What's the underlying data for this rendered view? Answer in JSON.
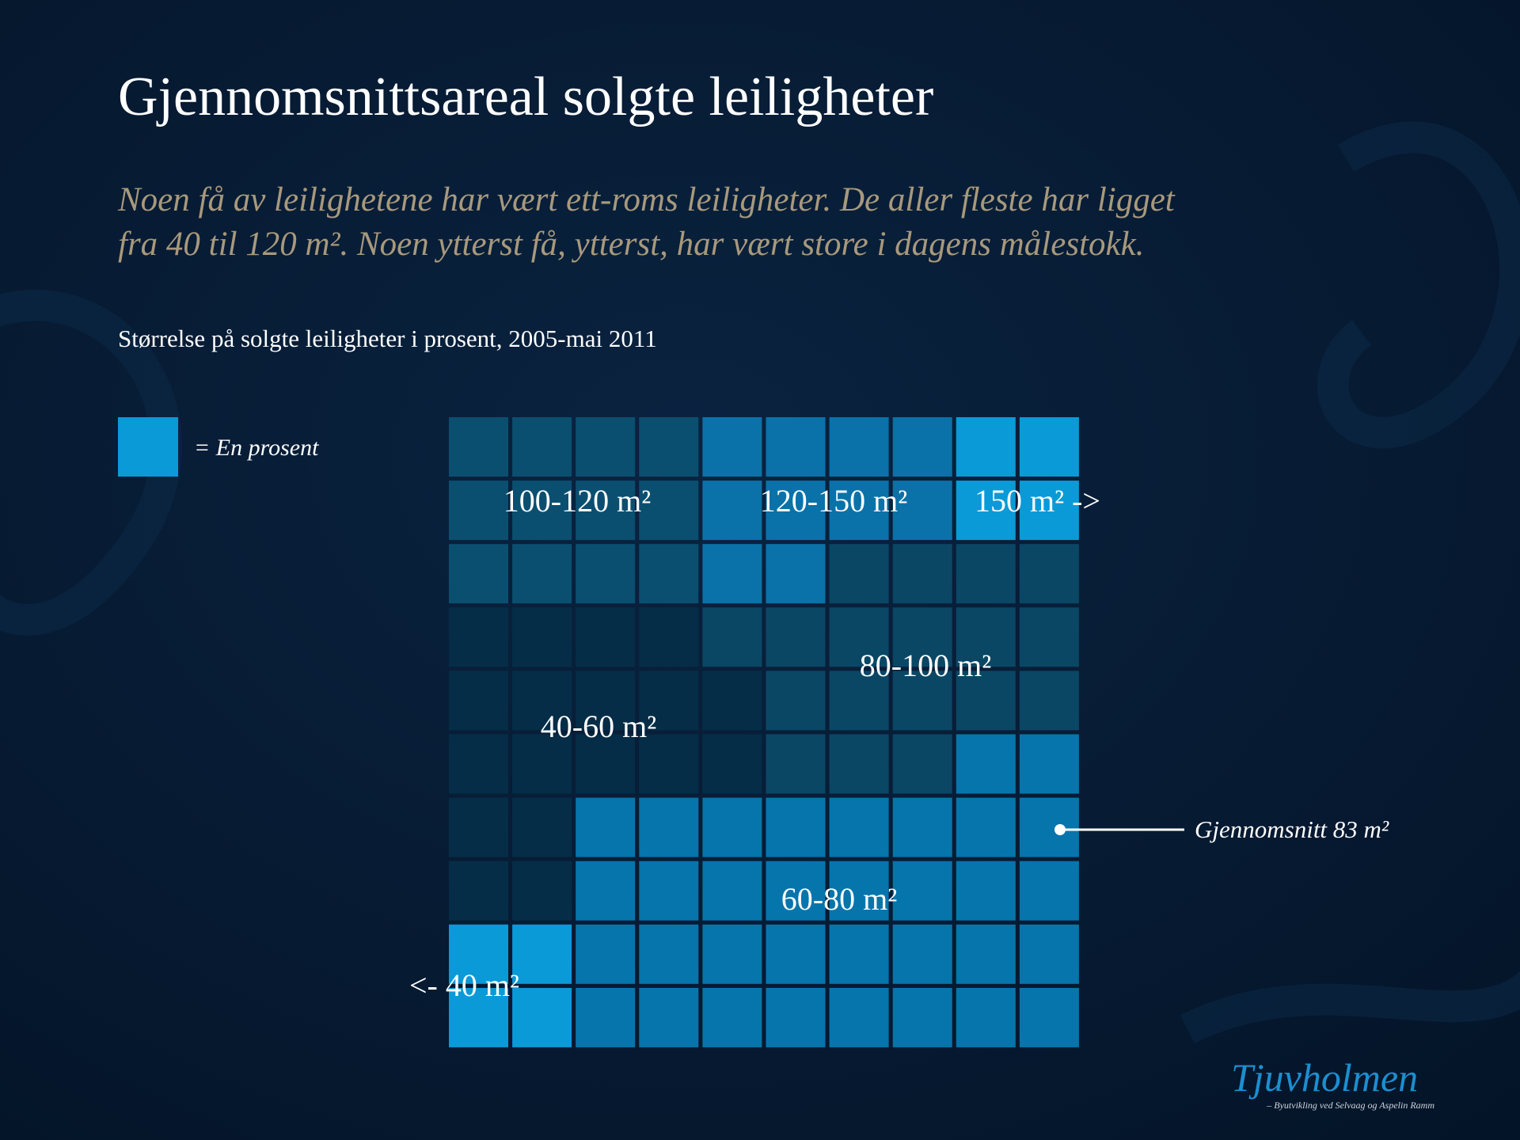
{
  "header": {
    "title": "Gjennomsnittsareal solgte leiligheter",
    "subtitle_lines": [
      "Noen få av leilighetene har vært ett-roms leiligheter. De aller fleste har ligget",
      "fra 40 til 120 m². Noen ytterst få, ytterst, har vært store i dagens målestokk."
    ]
  },
  "chart_data": {
    "type": "waffle",
    "title": "Størrelse på solgte leiligheter i prosent, 2005-mai 2011",
    "legend_label": "= En prosent",
    "legend_color": "#0a9ad8",
    "categories": [
      "<- 40 m²",
      "40-60 m²",
      "60-80 m²",
      "80-100 m²",
      "100-120 m²",
      "120-150 m²",
      "150 m² ->"
    ],
    "values": [
      4,
      18,
      34,
      18,
      12,
      10,
      4
    ],
    "colors": [
      "#0a9ad8",
      "#062d47",
      "#0675ac",
      "#0a4765",
      "#0b4f70",
      "#0a72a8",
      "#0a9ad8"
    ],
    "annotation": "Gjennomsnitt 83 m²"
  },
  "logo": {
    "name": "Tjuvholmen",
    "tagline": "– Byutvikling ved Selvaag og Aspelin Ramm"
  }
}
